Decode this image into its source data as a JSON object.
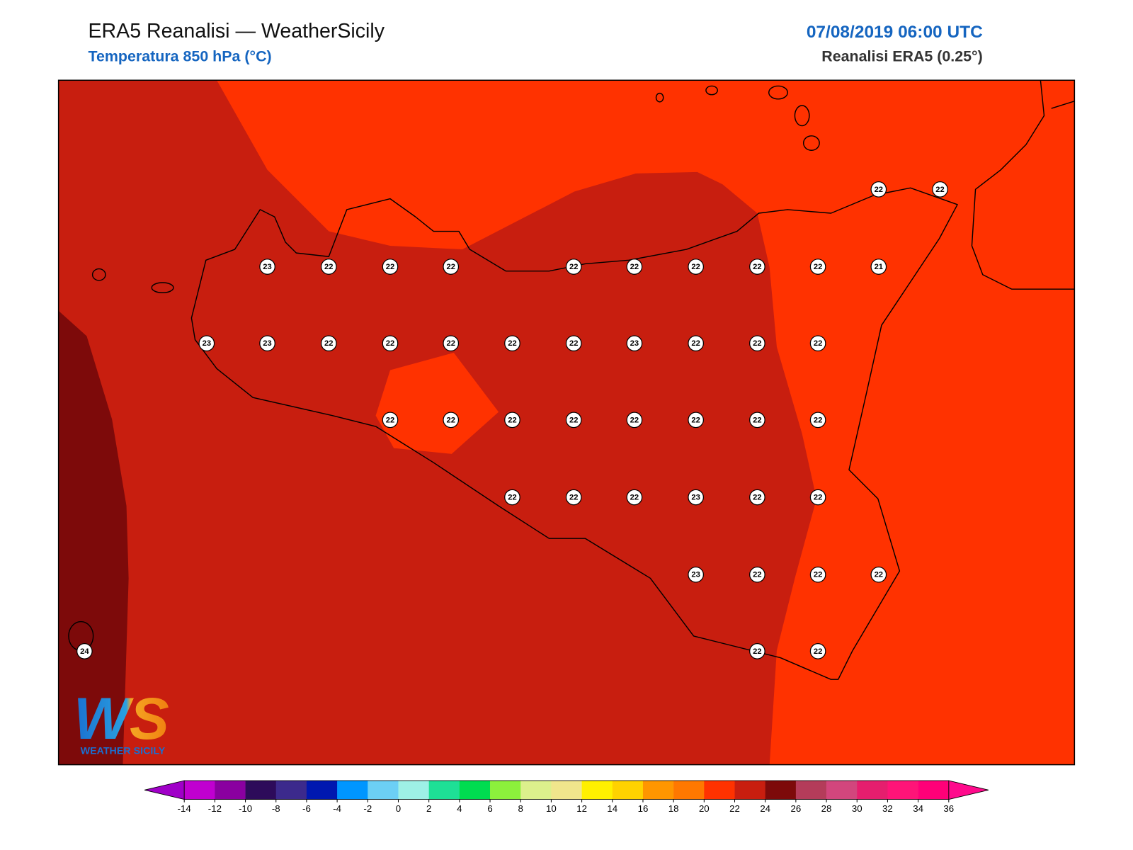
{
  "header": {
    "title": "ERA5 Reanalisi — WeatherSicily",
    "subtitle": "Temperatura 850 hPa (°C)",
    "datetime": "07/08/2019 06:00 UTC",
    "source": "Reanalisi ERA5 (0.25°)"
  },
  "stations": [
    22,
    22,
    23,
    22,
    22,
    22,
    22,
    22,
    22,
    22,
    22,
    21,
    23,
    23,
    22,
    22,
    22,
    22,
    22,
    23,
    22,
    22,
    22,
    22,
    22,
    22,
    22,
    22,
    22,
    22,
    22,
    22,
    22,
    22,
    23,
    22,
    22,
    23,
    22,
    22,
    22,
    24,
    22,
    22
  ],
  "colorbar": {
    "levels": [
      -14,
      -12,
      -10,
      -8,
      -6,
      -4,
      -2,
      0,
      2,
      4,
      6,
      8,
      10,
      12,
      14,
      16,
      18,
      20,
      22,
      24,
      26,
      28,
      30,
      32,
      34,
      36
    ],
    "colors": [
      "#c000d0",
      "#8a00a0",
      "#2d0b5a",
      "#3c2a8c",
      "#0018b0",
      "#0096ff",
      "#6ccff5",
      "#9ef0e6",
      "#1ee096",
      "#00dc50",
      "#8cf03c",
      "#dcf08c",
      "#f0e68c",
      "#fff000",
      "#ffd200",
      "#ff9600",
      "#ff7800",
      "#ff3200",
      "#c81e0f",
      "#7d0a0a",
      "#b43c5a",
      "#d2467d",
      "#e61e6e",
      "#ff1478",
      "#ff0078"
    ],
    "under": "#a000c8",
    "over": "#ff0a8c"
  },
  "logo": {
    "mark": "WS",
    "tagline": "WEATHER SICILY"
  }
}
